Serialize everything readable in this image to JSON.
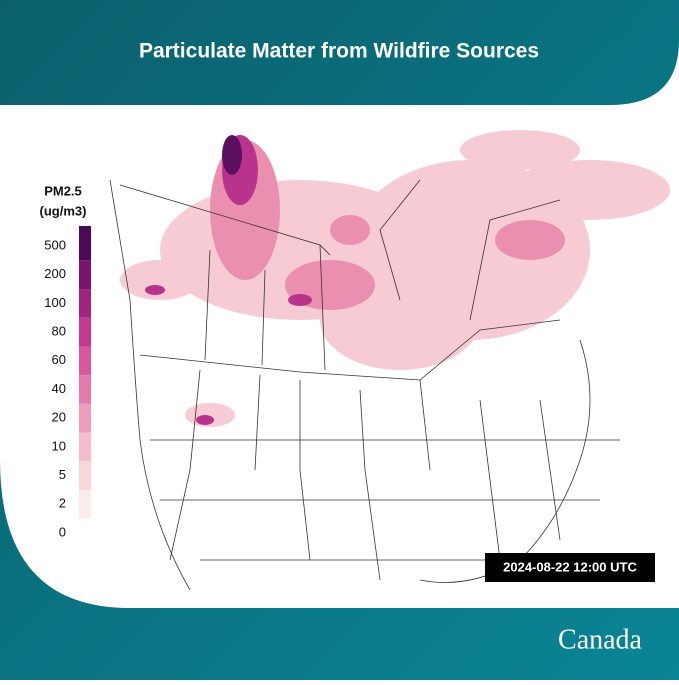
{
  "header": {
    "title": "Particulate Matter from Wildfire Sources"
  },
  "legend": {
    "title": "PM2.5",
    "unit": "(ug/m3)",
    "levels": [
      500,
      200,
      100,
      80,
      60,
      40,
      20,
      10,
      5,
      2,
      0
    ]
  },
  "timestamp": "2024-08-22 12:00 UTC",
  "footer": {
    "logo": "Canada"
  }
}
